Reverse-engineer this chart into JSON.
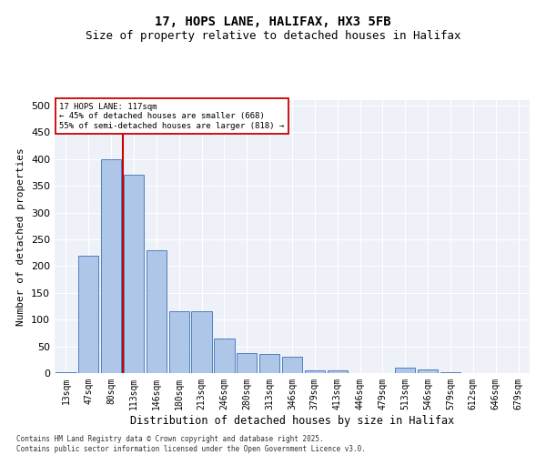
{
  "title1": "17, HOPS LANE, HALIFAX, HX3 5FB",
  "title2": "Size of property relative to detached houses in Halifax",
  "xlabel": "Distribution of detached houses by size in Halifax",
  "ylabel": "Number of detached properties",
  "categories": [
    "13sqm",
    "47sqm",
    "80sqm",
    "113sqm",
    "146sqm",
    "180sqm",
    "213sqm",
    "246sqm",
    "280sqm",
    "313sqm",
    "346sqm",
    "379sqm",
    "413sqm",
    "446sqm",
    "479sqm",
    "513sqm",
    "546sqm",
    "579sqm",
    "612sqm",
    "646sqm",
    "679sqm"
  ],
  "values": [
    2,
    220,
    400,
    370,
    230,
    115,
    115,
    65,
    37,
    35,
    30,
    5,
    5,
    0,
    0,
    10,
    7,
    2,
    0,
    0,
    0
  ],
  "bar_color": "#aec6e8",
  "bar_edge_color": "#5080c0",
  "vline_x_index": 3,
  "vline_color": "#cc0000",
  "annotation_text": "17 HOPS LANE: 117sqm\n← 45% of detached houses are smaller (668)\n55% of semi-detached houses are larger (818) →",
  "annotation_box_color": "#ffffff",
  "annotation_box_edge_color": "#cc0000",
  "footnote": "Contains HM Land Registry data © Crown copyright and database right 2025.\nContains public sector information licensed under the Open Government Licence v3.0.",
  "ylim": [
    0,
    510
  ],
  "yticks": [
    0,
    50,
    100,
    150,
    200,
    250,
    300,
    350,
    400,
    450,
    500
  ],
  "bg_color": "#eef2f8",
  "grid_color": "#ffffff",
  "title_fontsize": 10,
  "subtitle_fontsize": 9,
  "tick_fontsize": 7,
  "ylabel_fontsize": 8,
  "xlabel_fontsize": 8.5,
  "footnote_fontsize": 5.5
}
